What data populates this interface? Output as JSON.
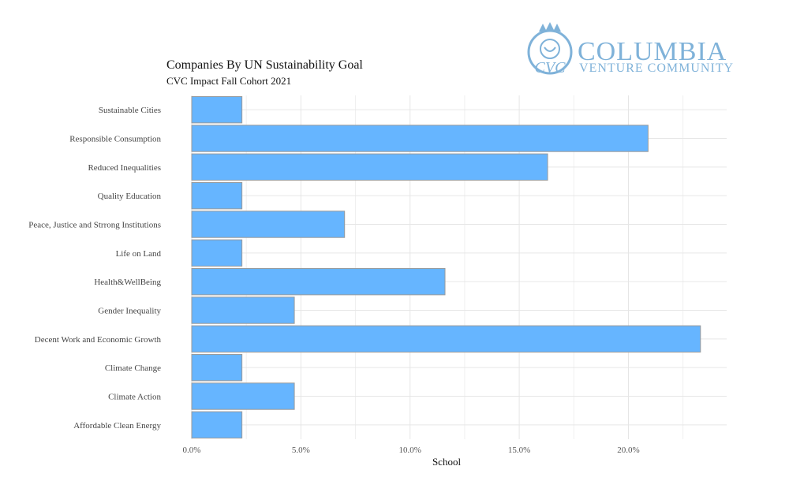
{
  "logo": {
    "line1": "COLUMBIA",
    "line2": "VENTURE COMMUNITY",
    "color": "#7fb2d9"
  },
  "chart_data": {
    "type": "bar",
    "orientation": "horizontal",
    "title": "Companies By UN Sustainability Goal",
    "subtitle": "CVC Impact Fall Cohort 2021",
    "xlabel": "School",
    "ylabel": "",
    "xlim": [
      0,
      24.5
    ],
    "xticks": [
      0,
      5,
      10,
      15,
      20
    ],
    "xtick_labels": [
      "0.0%",
      "5.0%",
      "10.0%",
      "15.0%",
      "20.0%"
    ],
    "grid": true,
    "bar_color": "#66b5ff",
    "categories": [
      "Sustainable Cities",
      "Responsible Consumption",
      "Reduced Inequalities",
      "Quality Education",
      "Peace, Justice and Strrong Institutions",
      "Life on Land",
      "Health&WellBeing",
      "Gender Inequality",
      "Decent Work and Economic Growth",
      "Climate Change",
      "Climate Action",
      "Affordable Clean Energy"
    ],
    "values": [
      2.3,
      20.9,
      16.3,
      2.3,
      7.0,
      2.3,
      11.6,
      4.7,
      23.3,
      2.3,
      4.7,
      2.3
    ]
  }
}
